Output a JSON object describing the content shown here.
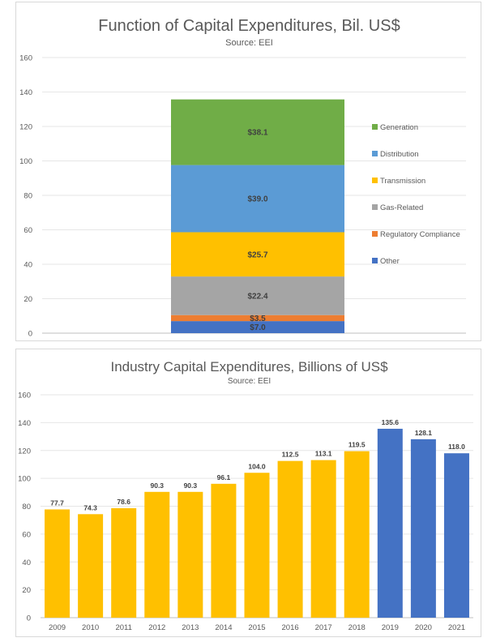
{
  "chart_data": [
    {
      "type": "bar",
      "stacked": true,
      "title": "Function of Capital Expenditures, Bil. US$",
      "subtitle": "Source: EEI",
      "ylim": [
        0,
        160
      ],
      "yticks": [
        0,
        20,
        40,
        60,
        80,
        100,
        120,
        140,
        160
      ],
      "grid": true,
      "legend_position": "right",
      "series": [
        {
          "name": "Other",
          "value": 7.0,
          "label": "$7.0",
          "color": "#4472c4"
        },
        {
          "name": "Regulatory Compliance",
          "value": 3.5,
          "label": "$3.5",
          "color": "#ed7d31"
        },
        {
          "name": "Gas-Related",
          "value": 22.4,
          "label": "$22.4",
          "color": "#a5a5a5"
        },
        {
          "name": "Transmission",
          "value": 25.7,
          "label": "$25.7",
          "color": "#ffc000"
        },
        {
          "name": "Distribution",
          "value": 39.0,
          "label": "$39.0",
          "color": "#5b9bd5"
        },
        {
          "name": "Generation",
          "value": 38.1,
          "label": "$38.1",
          "color": "#70ad47"
        }
      ]
    },
    {
      "type": "bar",
      "title": "Industry Capital Expenditures, Billions of US$",
      "subtitle": "Source: EEI",
      "ylim": [
        0,
        160
      ],
      "yticks": [
        0,
        20,
        40,
        60,
        80,
        100,
        120,
        140,
        160
      ],
      "grid": true,
      "categories": [
        "2009",
        "2010",
        "2011",
        "2012",
        "2013",
        "2014",
        "2015",
        "2016",
        "2017",
        "2018",
        "2019",
        "2020",
        "2021"
      ],
      "values": [
        77.7,
        74.3,
        78.6,
        90.3,
        90.3,
        96.1,
        104.0,
        112.5,
        113.1,
        119.5,
        135.6,
        128.1,
        118.0
      ],
      "labels": [
        "77.7",
        "74.3",
        "78.6",
        "90.3",
        "90.3",
        "96.1",
        "104.0",
        "112.5",
        "113.1",
        "119.5",
        "135.6",
        "128.1",
        "118.0"
      ],
      "colors": [
        "#ffc000",
        "#ffc000",
        "#ffc000",
        "#ffc000",
        "#ffc000",
        "#ffc000",
        "#ffc000",
        "#ffc000",
        "#ffc000",
        "#ffc000",
        "#4472c4",
        "#4472c4",
        "#4472c4"
      ]
    }
  ]
}
